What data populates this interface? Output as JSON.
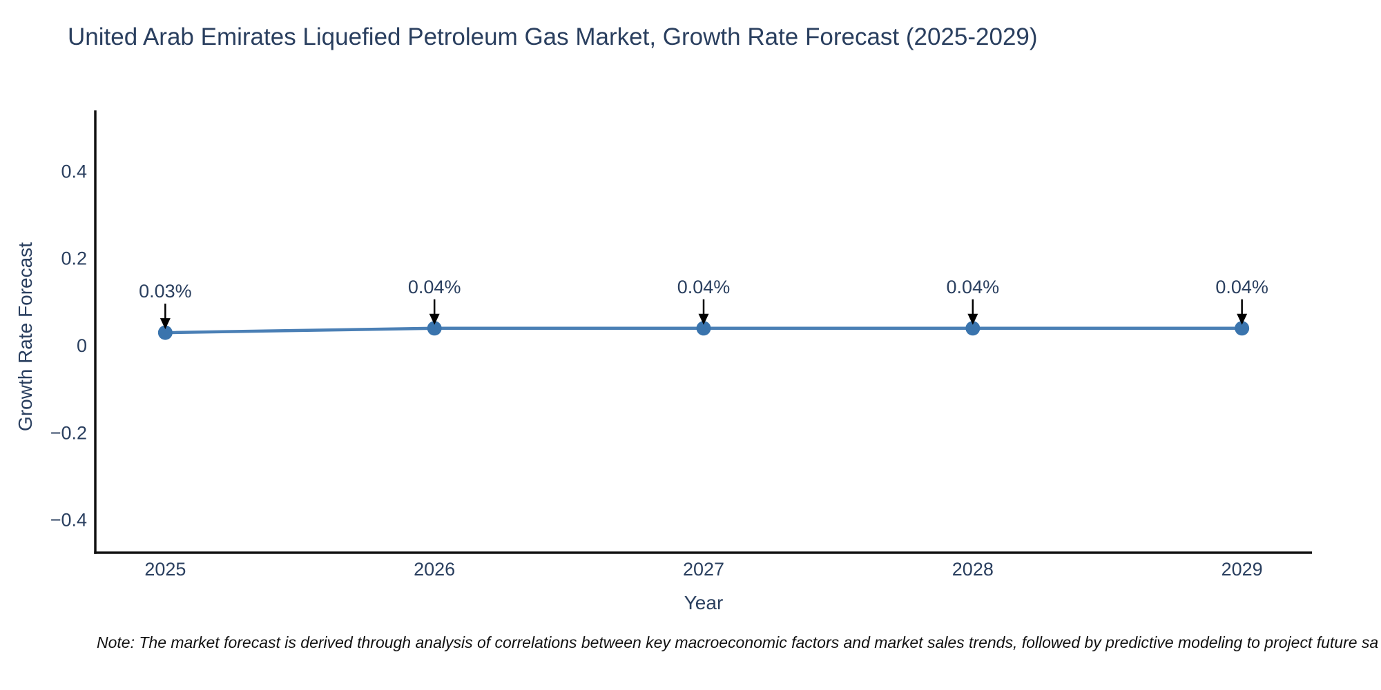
{
  "figure": {
    "note": "Note: The market forecast is derived through analysis of correlations between key macroeconomic factors and market sales trends, followed by predictive modeling to project future sa"
  },
  "chart_data": {
    "type": "line",
    "title": "United Arab Emirates Liquefied Petroleum Gas Market, Growth Rate Forecast (2025-2029)",
    "xlabel": "Year",
    "ylabel": "Growth Rate Forecast",
    "x": [
      2025,
      2026,
      2027,
      2028,
      2029
    ],
    "values": [
      0.03,
      0.04,
      0.04,
      0.04,
      0.04
    ],
    "point_labels": [
      "0.03%",
      "0.04%",
      "0.04%",
      "0.04%",
      "0.04%"
    ],
    "xtick_labels": [
      "2025",
      "2026",
      "2027",
      "2028",
      "2029"
    ],
    "ytick_values": [
      0.4,
      0.2,
      0,
      -0.2,
      -0.4
    ],
    "ytick_labels": [
      "0.4",
      "0.2",
      "0",
      "−0.2",
      "−0.4"
    ],
    "xlim": [
      2024.74,
      2029.26
    ],
    "ylim": [
      -0.475,
      0.54
    ],
    "grid": false,
    "legend": null,
    "line_color": "#4a7fb5",
    "marker_color": "#3a74ad",
    "axis_color": "#111111",
    "text_color": "#2a3f5f",
    "annotation_color": "#000000"
  }
}
